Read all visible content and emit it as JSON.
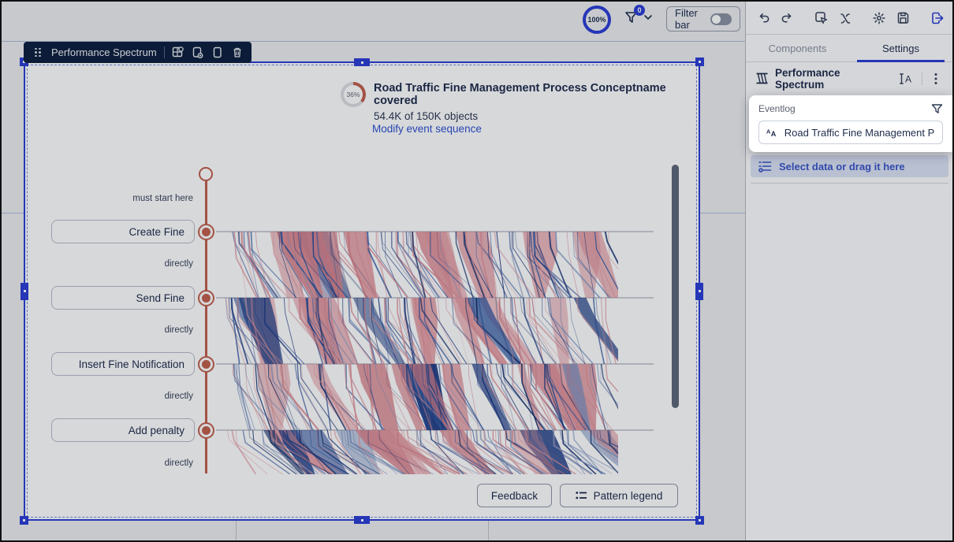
{
  "colors": {
    "accent": "#2b3fd6",
    "navy": "#0e1f3e",
    "timeline": "#c2604d",
    "canvas-bg": "#eceef0",
    "pink": "#df929a",
    "blue_dark": "#1e3c85",
    "blue_mid": "#3d5fa5"
  },
  "topbar": {
    "zoom_level": "100%",
    "filter_count": "0",
    "filter_bar_label": "Filter bar"
  },
  "component_toolbar": {
    "title": "Performance Spectrum"
  },
  "chart": {
    "coverage_percent": "36%",
    "title": "Road Traffic Fine Management Process Conceptname covered",
    "subtitle": "54.4K of 150K objects",
    "link_label": "Modify event sequence",
    "start_label": "must start here",
    "connector_label": "directly",
    "activities": [
      "Create Fine",
      "Send Fine",
      "Insert Fine Notification",
      "Add penalty"
    ],
    "feedback_button": "Feedback",
    "pattern_legend_button": "Pattern legend",
    "spectrum_type": "performance-spectrum",
    "spectrum_colors": {
      "pink": [
        "#df929a",
        "#e59da4",
        "#d8838c"
      ],
      "blue": [
        "#1e3c85",
        "#2d55a0",
        "#3d5fa5",
        "#7e96c4",
        "#16306e"
      ]
    }
  },
  "sidebar": {
    "tabs": [
      {
        "label": "Components",
        "active": false
      },
      {
        "label": "Settings",
        "active": true
      }
    ],
    "component_title": "Performance Spectrum",
    "eventlog": {
      "section_label": "Eventlog",
      "selected_value": "Road Traffic Fine Management Proces...",
      "add_data_label": "Select data or drag it here"
    }
  },
  "icons": {
    "toolbar": [
      "undo-icon",
      "redo-icon",
      "select-pointer-icon",
      "variables-icon",
      "gear-icon",
      "save-icon",
      "exit-icon"
    ],
    "component_toolbar": [
      "drag-handle-icon",
      "replace-component-icon",
      "duplicate-icon",
      "copy-icon",
      "trash-icon"
    ],
    "other": [
      "filter-funnel-icon",
      "chevron-down-icon",
      "rename-icon",
      "kebab-menu-icon",
      "font-aa-icon",
      "add-data-list-icon",
      "pattern-legend-list-icon",
      "performance-spectrum-icon"
    ]
  }
}
